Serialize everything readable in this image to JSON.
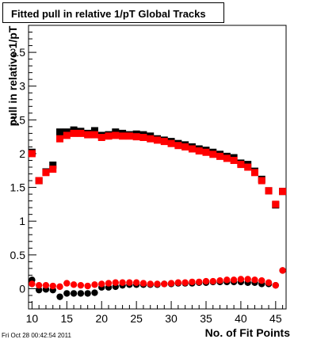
{
  "chart_data": {
    "type": "scatter",
    "title": "Fitted pull in relative 1/pT  Global Tracks",
    "xlabel": "No. of Fit Points",
    "ylabel": "pull in relative 1/pT",
    "xlim": [
      9.5,
      46.5
    ],
    "ylim": [
      -0.3,
      3.9
    ],
    "x_ticks": [
      10,
      15,
      20,
      25,
      30,
      35,
      40,
      45
    ],
    "y_ticks": [
      0,
      0.5,
      1,
      1.5,
      2,
      2.5,
      3,
      3.5
    ],
    "grid": false,
    "series": [
      {
        "color": "#000000",
        "marker": "square",
        "x": [
          10,
          11,
          12,
          13,
          14,
          15,
          16,
          17,
          18,
          19,
          20,
          21,
          22,
          23,
          24,
          25,
          26,
          27,
          28,
          29,
          30,
          31,
          32,
          33,
          34,
          35,
          36,
          37,
          38,
          39,
          40,
          41,
          42,
          43,
          44,
          45,
          46
        ],
        "y": [
          2.02,
          1.6,
          1.73,
          1.83,
          2.32,
          2.32,
          2.35,
          2.33,
          2.3,
          2.34,
          2.27,
          2.28,
          2.32,
          2.3,
          2.28,
          2.29,
          2.28,
          2.26,
          2.22,
          2.2,
          2.18,
          2.15,
          2.13,
          2.1,
          2.07,
          2.05,
          2.02,
          1.99,
          1.96,
          1.94,
          1.86,
          1.84,
          1.74,
          1.62,
          1.45,
          1.24,
          1.44
        ]
      },
      {
        "color": "#ff0000",
        "marker": "square",
        "x": [
          10,
          11,
          12,
          13,
          14,
          15,
          16,
          17,
          18,
          19,
          20,
          21,
          22,
          23,
          24,
          25,
          26,
          27,
          28,
          29,
          30,
          31,
          32,
          33,
          34,
          35,
          36,
          37,
          38,
          39,
          40,
          41,
          42,
          43,
          44,
          45,
          46
        ],
        "y": [
          2.0,
          1.6,
          1.72,
          1.77,
          2.22,
          2.27,
          2.3,
          2.3,
          2.28,
          2.28,
          2.24,
          2.26,
          2.27,
          2.26,
          2.26,
          2.25,
          2.24,
          2.22,
          2.2,
          2.18,
          2.15,
          2.12,
          2.1,
          2.07,
          2.04,
          2.02,
          1.99,
          1.96,
          1.93,
          1.9,
          1.84,
          1.8,
          1.72,
          1.6,
          1.45,
          1.25,
          1.44
        ]
      },
      {
        "color": "#000000",
        "marker": "circle",
        "x": [
          10,
          11,
          12,
          13,
          14,
          15,
          16,
          17,
          18,
          19,
          20,
          21,
          22,
          23,
          24,
          25,
          26,
          27,
          28,
          29,
          30,
          31,
          32,
          33,
          34,
          35,
          36,
          37,
          38,
          39,
          40,
          41,
          42,
          43,
          44,
          45,
          46
        ],
        "y": [
          0.13,
          -0.02,
          -0.01,
          -0.02,
          -0.12,
          -0.07,
          -0.07,
          -0.07,
          -0.07,
          -0.06,
          0.02,
          0.02,
          0.03,
          0.05,
          0.06,
          0.06,
          0.06,
          0.06,
          0.06,
          0.07,
          0.07,
          0.08,
          0.08,
          0.08,
          0.09,
          0.09,
          0.1,
          0.1,
          0.1,
          0.1,
          0.1,
          0.09,
          0.09,
          0.07,
          0.07,
          0.05,
          0.27
        ]
      },
      {
        "color": "#ff0000",
        "marker": "circle",
        "x": [
          10,
          11,
          12,
          13,
          14,
          15,
          16,
          17,
          18,
          19,
          20,
          21,
          22,
          23,
          24,
          25,
          26,
          27,
          28,
          29,
          30,
          31,
          32,
          33,
          34,
          35,
          36,
          37,
          38,
          39,
          40,
          41,
          42,
          43,
          44,
          45,
          46
        ],
        "y": [
          0.07,
          0.05,
          0.05,
          0.04,
          0.03,
          0.08,
          0.06,
          0.05,
          0.04,
          0.06,
          0.07,
          0.08,
          0.09,
          0.09,
          0.09,
          0.09,
          0.08,
          0.07,
          0.07,
          0.07,
          0.08,
          0.09,
          0.09,
          0.1,
          0.1,
          0.11,
          0.11,
          0.12,
          0.13,
          0.13,
          0.14,
          0.14,
          0.13,
          0.12,
          0.09,
          0.05,
          0.27
        ]
      }
    ],
    "x_scale_note": "",
    "datestamp": "Fri Oct 28 00:42:54 2011"
  },
  "labels": {
    "title": "Fitted pull in relative 1/pT  Global Tracks",
    "xlabel": "No. of Fit Points",
    "ylabel": "pull in relative 1/pT",
    "datestamp": "Fri Oct 28 00:42:54 2011"
  }
}
